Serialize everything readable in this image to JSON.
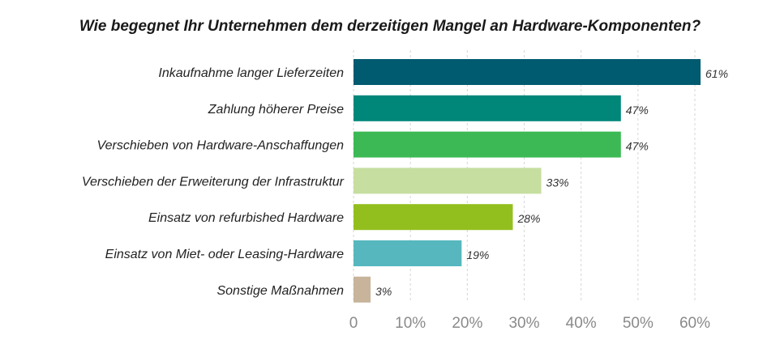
{
  "chart_data": {
    "type": "bar",
    "orientation": "horizontal",
    "title": "Wie begegnet Ihr Unternehmen dem derzeitigen Mangel an Hardware-Komponenten?",
    "xlabel": "",
    "ylabel": "",
    "categories": [
      "Inkaufnahme langer Lieferzeiten",
      "Zahlung höherer Preise",
      "Verschieben von Hardware-Anschaffungen",
      "Verschieben der Erweiterung der Infrastruktur",
      "Einsatz von refurbished Hardware",
      "Einsatz von Miet- oder Leasing-Hardware",
      "Sonstige Maßnahmen"
    ],
    "values": [
      61,
      47,
      47,
      33,
      28,
      19,
      3
    ],
    "value_labels": [
      "61%",
      "47%",
      "47%",
      "33%",
      "28%",
      "19%",
      "3%"
    ],
    "colors": [
      "#005a70",
      "#00877a",
      "#3cb954",
      "#c6dea0",
      "#93bf1e",
      "#56b7bf",
      "#c7b49a"
    ],
    "xlim": [
      0,
      60
    ],
    "xticks": [
      0,
      10,
      20,
      30,
      40,
      50,
      60
    ],
    "xtick_labels": [
      "0",
      "10%",
      "20%",
      "30%",
      "40%",
      "50%",
      "60%"
    ],
    "grid": true,
    "legend": "none"
  }
}
